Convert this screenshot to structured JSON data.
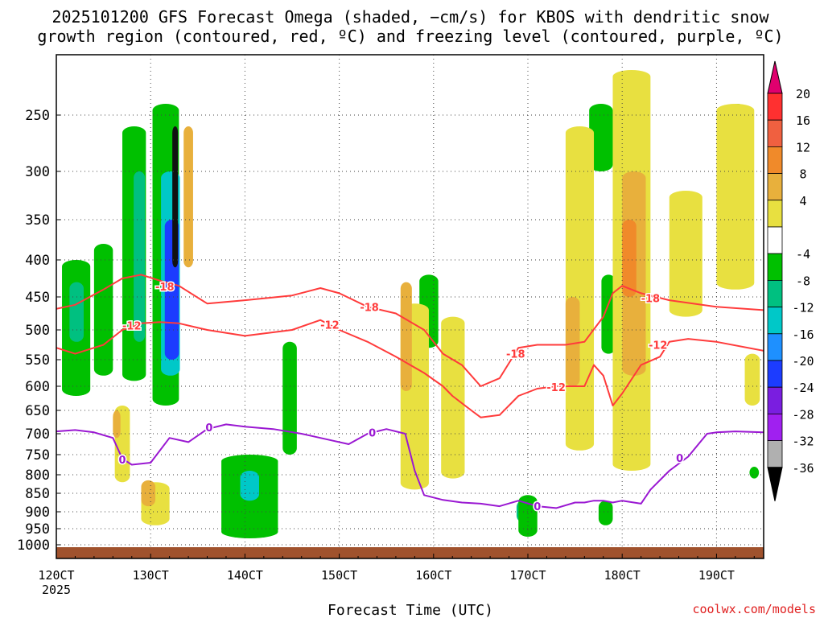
{
  "title_lines": [
    "2025101200 GFS Forecast Omega (shaded, −cm/s) for KBOS with dendritic snow",
    "growth region (contoured, red, ºC) and freezing level (contoured, purple, ºC)"
  ],
  "credit": "coolwx.com/models",
  "chart_data": {
    "type": "heatmap",
    "xlabel": "Forecast Time (UTC)",
    "ylabel": "",
    "x_ticks": [
      "120CT",
      "130CT",
      "140CT",
      "150CT",
      "160CT",
      "170CT",
      "180CT",
      "190CT"
    ],
    "x_year": "2025",
    "y_ticks": [
      "250",
      "300",
      "350",
      "400",
      "450",
      "500",
      "550",
      "600",
      "650",
      "700",
      "750",
      "800",
      "850",
      "900",
      "950",
      "1000"
    ],
    "y_values": [
      250,
      300,
      350,
      400,
      450,
      500,
      550,
      600,
      650,
      700,
      750,
      800,
      850,
      900,
      950,
      1000
    ],
    "xlim": [
      120,
      195
    ],
    "ylim_hpa": [
      200,
      1000
    ],
    "grid": true,
    "colorbar": {
      "labels": [
        "20",
        "16",
        "12",
        "8",
        "4",
        "-4",
        "-8",
        "-12",
        "-16",
        "-20",
        "-24",
        "-28",
        "-32",
        "-36"
      ],
      "colors": [
        "#ff3030",
        "#f06040",
        "#f08a2a",
        "#e8b03c",
        "#e8e040",
        "#ffffff",
        "#00c000",
        "#00c080",
        "#00c8c8",
        "#1e90ff",
        "#1c3cff",
        "#7a1ee0",
        "#a020f0",
        "#b0b0b0"
      ],
      "top_triangle": "#e0006e",
      "bottom_triangle": "#000000"
    },
    "series": [
      {
        "name": "-18",
        "color": "#ff3b3b",
        "x": [
          120,
          122,
          125,
          127,
          129,
          131,
          133,
          136,
          140,
          145,
          148,
          150,
          153,
          156,
          159,
          161,
          163,
          165,
          167,
          169,
          171,
          174,
          176,
          178,
          179,
          180,
          182,
          185,
          190,
          195
        ],
        "y": [
          468,
          462,
          440,
          425,
          420,
          428,
          435,
          460,
          455,
          448,
          438,
          445,
          465,
          475,
          500,
          540,
          560,
          600,
          585,
          530,
          525,
          525,
          520,
          480,
          445,
          435,
          445,
          455,
          465,
          470
        ]
      },
      {
        "name": "-12",
        "color": "#ff3b3b",
        "x": [
          120,
          122,
          125,
          127,
          129,
          131,
          133,
          136,
          140,
          145,
          148,
          150,
          153,
          156,
          159,
          161,
          162,
          164,
          165,
          167,
          169,
          171,
          173,
          175,
          176,
          177,
          178,
          179,
          180,
          182,
          184,
          185,
          187,
          190,
          195
        ],
        "y": [
          530,
          540,
          525,
          500,
          490,
          488,
          490,
          500,
          510,
          500,
          485,
          500,
          520,
          545,
          575,
          600,
          620,
          650,
          665,
          660,
          620,
          605,
          600,
          600,
          600,
          560,
          580,
          640,
          615,
          560,
          545,
          520,
          515,
          520,
          535
        ]
      },
      {
        "name": "0",
        "color": "#9a18d2",
        "x": [
          120,
          122,
          124,
          126,
          127,
          128,
          130,
          132,
          134,
          136,
          138,
          140,
          143,
          146,
          149,
          151,
          153,
          155,
          157,
          158,
          159,
          161,
          163,
          165,
          167,
          169,
          171,
          173,
          175,
          176,
          177,
          178,
          179,
          180,
          182,
          183,
          185,
          187,
          189,
          190,
          192,
          195
        ],
        "y": [
          695,
          692,
          697,
          710,
          760,
          775,
          770,
          710,
          720,
          690,
          680,
          685,
          690,
          700,
          715,
          725,
          700,
          690,
          700,
          790,
          855,
          868,
          875,
          878,
          885,
          870,
          885,
          890,
          875,
          875,
          870,
          870,
          875,
          870,
          878,
          840,
          790,
          755,
          700,
          697,
          695,
          697
        ]
      }
    ],
    "contour_labels": [
      {
        "text": "-18",
        "x": 131.5,
        "y": 436
      },
      {
        "text": "-12",
        "x": 128,
        "y": 493
      },
      {
        "text": "-18",
        "x": 153.2,
        "y": 465
      },
      {
        "text": "-12",
        "x": 149,
        "y": 492
      },
      {
        "text": "-18",
        "x": 168.7,
        "y": 540
      },
      {
        "text": "-12",
        "x": 173,
        "y": 602
      },
      {
        "text": "-18",
        "x": 183,
        "y": 452
      },
      {
        "text": "-12",
        "x": 183.8,
        "y": 525
      },
      {
        "text": "0",
        "x": 136.2,
        "y": 686
      },
      {
        "text": "0",
        "x": 153.5,
        "y": 697
      },
      {
        "text": "0",
        "x": 127,
        "y": 762
      },
      {
        "text": "0",
        "x": 171,
        "y": 885
      },
      {
        "text": "0",
        "x": 186.1,
        "y": 758
      }
    ],
    "omega_regions": [
      {
        "value": -8,
        "x": 120.6,
        "y": 400,
        "w": 3,
        "h": 220
      },
      {
        "value": -12,
        "x": 121.4,
        "y": 430,
        "w": 1.5,
        "h": 90
      },
      {
        "value": -8,
        "x": 124,
        "y": 380,
        "w": 2,
        "h": 200
      },
      {
        "value": -8,
        "x": 127,
        "y": 260,
        "w": 2.5,
        "h": 330
      },
      {
        "value": -12,
        "x": 128.2,
        "y": 300,
        "w": 1.2,
        "h": 220
      },
      {
        "value": -8,
        "x": 130.2,
        "y": 240,
        "w": 2.8,
        "h": 400
      },
      {
        "value": -16,
        "x": 131.1,
        "y": 300,
        "w": 2,
        "h": 280
      },
      {
        "value": -24,
        "x": 131.5,
        "y": 350,
        "w": 1.5,
        "h": 200
      },
      {
        "value": -36,
        "x": 132.3,
        "y": 260,
        "w": 0.6,
        "h": 150
      },
      {
        "value": -8,
        "x": 137.5,
        "y": 750,
        "w": 6,
        "h": 230
      },
      {
        "value": -16,
        "x": 139.5,
        "y": 790,
        "w": 2,
        "h": 80
      },
      {
        "value": -8,
        "x": 144,
        "y": 520,
        "w": 1.5,
        "h": 230
      },
      {
        "value": -8,
        "x": 158.5,
        "y": 420,
        "w": 2,
        "h": 110
      },
      {
        "value": -12,
        "x": 168.8,
        "y": 870,
        "w": 1.2,
        "h": 60
      },
      {
        "value": -8,
        "x": 169,
        "y": 855,
        "w": 2,
        "h": 120
      },
      {
        "value": -8,
        "x": 177.8,
        "y": 420,
        "w": 1.5,
        "h": 120
      },
      {
        "value": -8,
        "x": 176.5,
        "y": 240,
        "w": 2.5,
        "h": 60
      },
      {
        "value": -8,
        "x": 177.5,
        "y": 870,
        "w": 1.5,
        "h": 70
      },
      {
        "value": -8,
        "x": 191.5,
        "y": 240,
        "w": 1.5,
        "h": 60
      },
      {
        "value": -8,
        "x": 193.5,
        "y": 780,
        "w": 1,
        "h": 30
      },
      {
        "value": 4,
        "x": 126.2,
        "y": 640,
        "w": 1.6,
        "h": 180
      },
      {
        "value": 8,
        "x": 126,
        "y": 650,
        "w": 0.8,
        "h": 60
      },
      {
        "value": 4,
        "x": 129,
        "y": 820,
        "w": 3,
        "h": 120
      },
      {
        "value": 8,
        "x": 129,
        "y": 815,
        "w": 1.5,
        "h": 70
      },
      {
        "value": 8,
        "x": 133.5,
        "y": 260,
        "w": 1,
        "h": 150
      },
      {
        "value": 4,
        "x": 156.5,
        "y": 460,
        "w": 3,
        "h": 380
      },
      {
        "value": 8,
        "x": 156.5,
        "y": 430,
        "w": 1.2,
        "h": 180
      },
      {
        "value": 4,
        "x": 160.8,
        "y": 480,
        "w": 2.5,
        "h": 330
      },
      {
        "value": 4,
        "x": 174,
        "y": 260,
        "w": 3,
        "h": 480
      },
      {
        "value": 8,
        "x": 174,
        "y": 450,
        "w": 1.5,
        "h": 150
      },
      {
        "value": 4,
        "x": 179,
        "y": 210,
        "w": 4,
        "h": 580
      },
      {
        "value": 8,
        "x": 180,
        "y": 300,
        "w": 2.5,
        "h": 280
      },
      {
        "value": 12,
        "x": 180,
        "y": 350,
        "w": 1.5,
        "h": 100
      },
      {
        "value": 4,
        "x": 185,
        "y": 320,
        "w": 3.5,
        "h": 160
      },
      {
        "value": 4,
        "x": 190,
        "y": 240,
        "w": 4,
        "h": 200
      },
      {
        "value": 4,
        "x": 193,
        "y": 540,
        "w": 1.6,
        "h": 100
      }
    ]
  }
}
